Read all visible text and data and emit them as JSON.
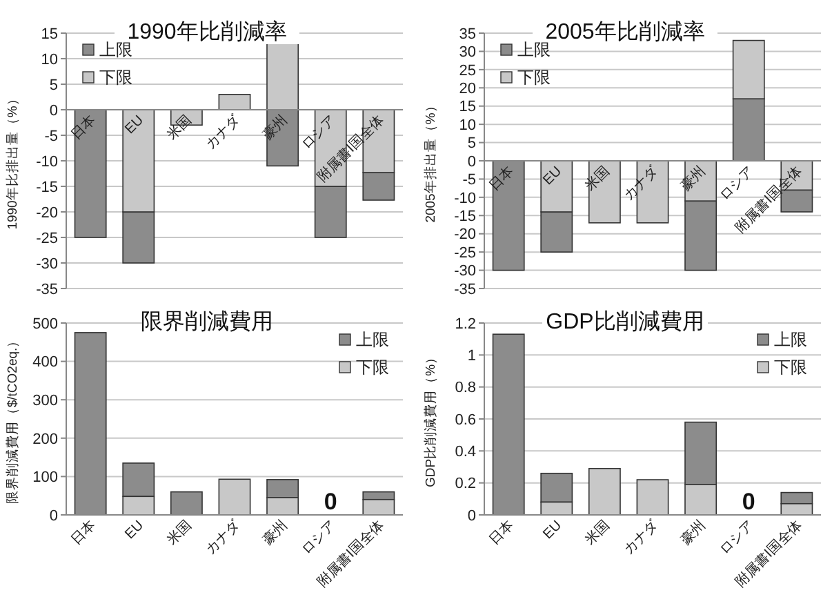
{
  "chart_data": [
    {
      "type": "bar",
      "title": "1990年比削減率",
      "ylabel": "1990年比排出量（%）",
      "categories": [
        "日本",
        "EU",
        "米国",
        "カナダ",
        "豪州",
        "ロシア",
        "附属書Ⅰ国全体"
      ],
      "series": [
        {
          "name": "上限",
          "color": "#8c8c8c",
          "base": [
            0,
            -20,
            null,
            null,
            0,
            -15,
            -12.3
          ],
          "values": [
            -25,
            -10,
            null,
            null,
            -11,
            -10,
            -5.4
          ]
        },
        {
          "name": "下限",
          "color": "#c8c8c8",
          "base": [
            null,
            0,
            0,
            0,
            0,
            0,
            0
          ],
          "values": [
            null,
            -20,
            -3,
            3,
            13,
            -15,
            -12.3
          ]
        }
      ],
      "ylim": [
        -35,
        15
      ],
      "yticks": [
        -35,
        -30,
        -25,
        -20,
        -15,
        -10,
        -5,
        0,
        5,
        10,
        15
      ],
      "grid": "y",
      "legend": "top left"
    },
    {
      "type": "bar",
      "title": "2005年比削減率",
      "ylabel": "2005年排出量（%）",
      "categories": [
        "日本",
        "EU",
        "米国",
        "カナダ",
        "豪州",
        "ロシア",
        "附属書Ⅰ国全体"
      ],
      "series": [
        {
          "name": "上限",
          "color": "#8c8c8c",
          "base": [
            0,
            -14,
            null,
            null,
            -11,
            0,
            -8
          ],
          "values": [
            -30,
            -11,
            null,
            null,
            -19,
            17,
            -6
          ]
        },
        {
          "name": "下限",
          "color": "#c8c8c8",
          "base": [
            null,
            0,
            0,
            0,
            0,
            17,
            0
          ],
          "values": [
            null,
            -14,
            -17,
            -17,
            -11,
            16,
            -8
          ]
        }
      ],
      "ylim": [
        -35,
        35
      ],
      "yticks": [
        -35,
        -30,
        -25,
        -20,
        -15,
        -10,
        -5,
        0,
        5,
        10,
        15,
        20,
        25,
        30,
        35
      ],
      "grid": "y",
      "legend": "top left"
    },
    {
      "type": "bar",
      "title": "限界削減費用",
      "ylabel": "限界削減費用（$/tCO2eq.）",
      "categories": [
        "日本",
        "EU",
        "米国",
        "カナダ",
        "豪州",
        "ロシア",
        "附属書Ⅰ国全体"
      ],
      "series": [
        {
          "name": "上限",
          "color": "#8c8c8c",
          "base": [
            0,
            48,
            0,
            null,
            45,
            null,
            40
          ],
          "values": [
            475,
            87,
            60,
            null,
            47,
            0,
            20
          ],
          "value_labels": [
            null,
            null,
            null,
            null,
            null,
            "0",
            null
          ]
        },
        {
          "name": "下限",
          "color": "#c8c8c8",
          "base": [
            null,
            0,
            null,
            0,
            0,
            null,
            0
          ],
          "values": [
            null,
            48,
            null,
            93,
            45,
            null,
            40
          ]
        }
      ],
      "ylim": [
        0,
        500
      ],
      "yticks": [
        0,
        100,
        200,
        300,
        400,
        500
      ],
      "grid": "y",
      "legend": "top right"
    },
    {
      "type": "bar",
      "title": "GDP比削減費用",
      "ylabel": "GDP比削減費用（%）",
      "categories": [
        "日本",
        "EU",
        "米国",
        "カナダ",
        "豪州",
        "ロシア",
        "附属書Ⅰ国全体"
      ],
      "series": [
        {
          "name": "上限",
          "color": "#8c8c8c",
          "base": [
            0,
            0.08,
            null,
            null,
            0.19,
            null,
            0.07
          ],
          "values": [
            1.13,
            0.18,
            null,
            null,
            0.39,
            0,
            0.07
          ],
          "value_labels": [
            null,
            null,
            null,
            null,
            null,
            "0",
            null
          ]
        },
        {
          "name": "下限",
          "color": "#c8c8c8",
          "base": [
            null,
            0,
            0,
            0,
            0,
            null,
            0
          ],
          "values": [
            null,
            0.08,
            0.29,
            0.22,
            0.19,
            null,
            0.07
          ]
        }
      ],
      "ylim": [
        0,
        1.2
      ],
      "yticks": [
        0,
        0.2,
        0.4,
        0.6,
        0.8,
        1,
        1.2
      ],
      "grid": "y",
      "legend": "top right"
    }
  ]
}
